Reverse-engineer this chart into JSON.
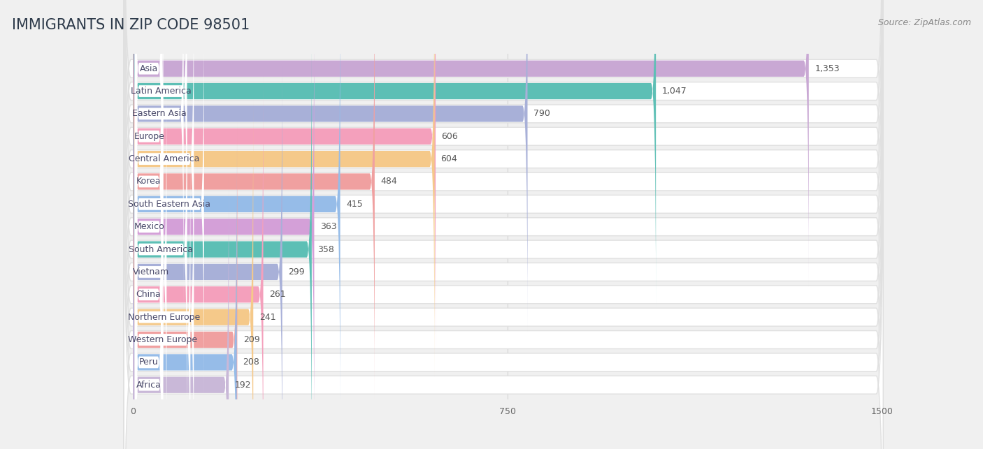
{
  "title": "IMMIGRANTS IN ZIP CODE 98501",
  "source": "Source: ZipAtlas.com",
  "categories": [
    "Asia",
    "Latin America",
    "Eastern Asia",
    "Europe",
    "Central America",
    "Korea",
    "South Eastern Asia",
    "Mexico",
    "South America",
    "Vietnam",
    "China",
    "Northern Europe",
    "Western Europe",
    "Peru",
    "Africa"
  ],
  "values": [
    1353,
    1047,
    790,
    606,
    604,
    484,
    415,
    363,
    358,
    299,
    261,
    241,
    209,
    208,
    192
  ],
  "bar_colors": [
    "#c9a8d4",
    "#5dbfb5",
    "#a8b0d8",
    "#f4a0bc",
    "#f5c98a",
    "#f0a0a0",
    "#96bce8",
    "#d4a0d8",
    "#5dbfb5",
    "#a8b0d8",
    "#f4a0bc",
    "#f5c98a",
    "#f0a0a0",
    "#96bce8",
    "#c9b8d8"
  ],
  "xlim_max": 1500,
  "xticks": [
    0,
    750,
    1500
  ],
  "bg_color": "#f0f0f0",
  "row_bg_color": "#ffffff",
  "row_border_color": "#e0e0e0",
  "title_fontsize": 15,
  "source_fontsize": 9,
  "bar_label_fontsize": 9,
  "value_label_fontsize": 9
}
